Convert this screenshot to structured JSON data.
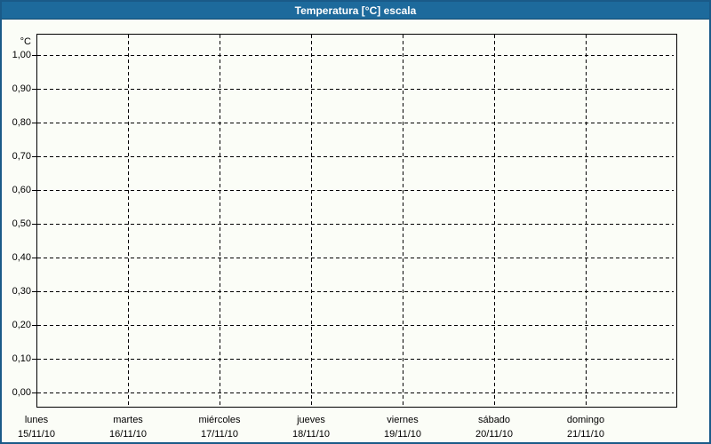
{
  "window": {
    "title": "Temperatura [°C] escala"
  },
  "colors": {
    "title_bar": "#1d6a9c",
    "title_bar_edge": "#14496f",
    "title_text": "#ffffff",
    "window_border": "#1a5a88",
    "background": "#fbfdf7",
    "plot_frame": "#000000",
    "grid": "#000000",
    "text": "#000000"
  },
  "chart_data": {
    "type": "line",
    "title": "Temperatura [°C] escala",
    "ylabel": "°C",
    "ylim": [
      0.0,
      1.0
    ],
    "y_tick_step": 0.1,
    "grid": "dashed",
    "legend": "none",
    "y_ticks": [
      {
        "value": 1.0,
        "label": "1,00"
      },
      {
        "value": 0.9,
        "label": "0,90"
      },
      {
        "value": 0.8,
        "label": "0,80"
      },
      {
        "value": 0.7,
        "label": "0,70"
      },
      {
        "value": 0.6,
        "label": "0,60"
      },
      {
        "value": 0.5,
        "label": "0,50"
      },
      {
        "value": 0.4,
        "label": "0,40"
      },
      {
        "value": 0.3,
        "label": "0,30"
      },
      {
        "value": 0.2,
        "label": "0,20"
      },
      {
        "value": 0.1,
        "label": "0,10"
      },
      {
        "value": 0.0,
        "label": "0,00"
      }
    ],
    "x_categories": [
      {
        "day": "lunes",
        "date": "15/11/10"
      },
      {
        "day": "martes",
        "date": "16/11/10"
      },
      {
        "day": "miércoles",
        "date": "17/11/10"
      },
      {
        "day": "jueves",
        "date": "18/11/10"
      },
      {
        "day": "viernes",
        "date": "19/11/10"
      },
      {
        "day": "sábado",
        "date": "20/11/10"
      },
      {
        "day": "domingo",
        "date": "21/11/10"
      }
    ],
    "series": []
  }
}
